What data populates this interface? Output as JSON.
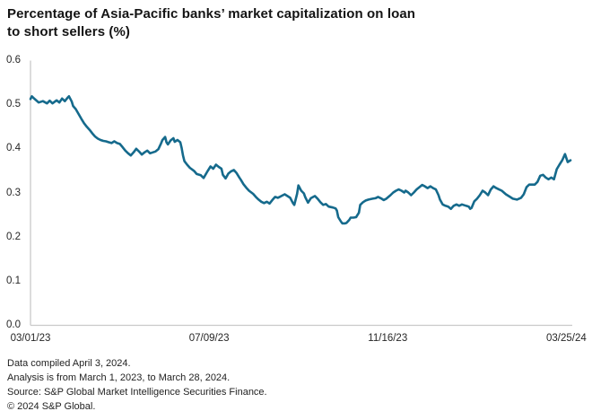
{
  "title": "Percentage of Asia-Pacific banks’ market capitalization on loan\nto short sellers (%)",
  "footer": {
    "lines": [
      "Data compiled April 3, 2024.",
      "Analysis is from March 1, 2023, to March 28, 2024.",
      "Source: S&P Global Market Intelligence Securities Finance.",
      "© 2024 S&P Global."
    ]
  },
  "chart_data": {
    "type": "line",
    "title": "Percentage of Asia-Pacific banks’ market capitalization on loan to short sellers (%)",
    "xlabel": "",
    "ylabel": "",
    "x_unit": "days since 2023-03-01",
    "x_range": [
      0,
      393
    ],
    "ylim": [
      0,
      0.6
    ],
    "grid": false,
    "legend": "none",
    "line_color": "#156a8c",
    "axis_color": "#c9c9c9",
    "yticks": [
      {
        "label": "0.6",
        "value": 0.6
      },
      {
        "label": "0.5",
        "value": 0.5
      },
      {
        "label": "0.4",
        "value": 0.4
      },
      {
        "label": "0.3",
        "value": 0.3
      },
      {
        "label": "0.2",
        "value": 0.2
      },
      {
        "label": "0.1",
        "value": 0.1
      },
      {
        "label": "0.0",
        "value": 0.0
      }
    ],
    "xticks": [
      {
        "label": "03/01/23",
        "day": 0
      },
      {
        "label": "07/09/23",
        "day": 130
      },
      {
        "label": "11/16/23",
        "day": 260
      },
      {
        "label": "03/25/24",
        "day": 390
      }
    ],
    "points": [
      [
        0,
        0.513
      ],
      [
        1,
        0.519
      ],
      [
        3,
        0.513
      ],
      [
        6,
        0.505
      ],
      [
        9,
        0.508
      ],
      [
        12,
        0.503
      ],
      [
        14,
        0.509
      ],
      [
        16,
        0.503
      ],
      [
        19,
        0.51
      ],
      [
        21,
        0.505
      ],
      [
        23,
        0.514
      ],
      [
        25,
        0.508
      ],
      [
        27,
        0.516
      ],
      [
        28,
        0.519
      ],
      [
        30,
        0.507
      ],
      [
        31,
        0.497
      ],
      [
        33,
        0.49
      ],
      [
        35,
        0.479
      ],
      [
        37,
        0.468
      ],
      [
        39,
        0.458
      ],
      [
        41,
        0.45
      ],
      [
        43,
        0.443
      ],
      [
        45,
        0.435
      ],
      [
        47,
        0.428
      ],
      [
        49,
        0.423
      ],
      [
        51,
        0.42
      ],
      [
        53,
        0.418
      ],
      [
        55,
        0.417
      ],
      [
        57,
        0.415
      ],
      [
        59,
        0.413
      ],
      [
        61,
        0.417
      ],
      [
        63,
        0.413
      ],
      [
        65,
        0.411
      ],
      [
        67,
        0.404
      ],
      [
        69,
        0.396
      ],
      [
        71,
        0.39
      ],
      [
        73,
        0.385
      ],
      [
        75,
        0.392
      ],
      [
        77,
        0.4
      ],
      [
        79,
        0.394
      ],
      [
        81,
        0.387
      ],
      [
        83,
        0.392
      ],
      [
        85,
        0.396
      ],
      [
        87,
        0.39
      ],
      [
        89,
        0.392
      ],
      [
        91,
        0.394
      ],
      [
        93,
        0.399
      ],
      [
        95,
        0.412
      ],
      [
        96,
        0.42
      ],
      [
        98,
        0.427
      ],
      [
        99,
        0.415
      ],
      [
        100,
        0.41
      ],
      [
        102,
        0.419
      ],
      [
        104,
        0.424
      ],
      [
        105,
        0.416
      ],
      [
        107,
        0.42
      ],
      [
        109,
        0.415
      ],
      [
        110,
        0.402
      ],
      [
        111,
        0.385
      ],
      [
        112,
        0.372
      ],
      [
        114,
        0.364
      ],
      [
        116,
        0.357
      ],
      [
        119,
        0.35
      ],
      [
        121,
        0.343
      ],
      [
        124,
        0.34
      ],
      [
        126,
        0.334
      ],
      [
        129,
        0.35
      ],
      [
        131,
        0.36
      ],
      [
        133,
        0.355
      ],
      [
        135,
        0.364
      ],
      [
        137,
        0.359
      ],
      [
        139,
        0.355
      ],
      [
        140,
        0.341
      ],
      [
        142,
        0.333
      ],
      [
        144,
        0.344
      ],
      [
        146,
        0.349
      ],
      [
        148,
        0.352
      ],
      [
        150,
        0.345
      ],
      [
        152,
        0.335
      ],
      [
        153,
        0.33
      ],
      [
        155,
        0.32
      ],
      [
        157,
        0.312
      ],
      [
        159,
        0.305
      ],
      [
        162,
        0.298
      ],
      [
        164,
        0.291
      ],
      [
        166,
        0.285
      ],
      [
        168,
        0.28
      ],
      [
        170,
        0.277
      ],
      [
        172,
        0.28
      ],
      [
        174,
        0.276
      ],
      [
        176,
        0.284
      ],
      [
        178,
        0.291
      ],
      [
        180,
        0.289
      ],
      [
        182,
        0.292
      ],
      [
        185,
        0.297
      ],
      [
        187,
        0.293
      ],
      [
        189,
        0.289
      ],
      [
        191,
        0.277
      ],
      [
        192,
        0.273
      ],
      [
        194,
        0.298
      ],
      [
        195,
        0.317
      ],
      [
        197,
        0.305
      ],
      [
        199,
        0.299
      ],
      [
        200,
        0.29
      ],
      [
        202,
        0.278
      ],
      [
        204,
        0.288
      ],
      [
        207,
        0.293
      ],
      [
        209,
        0.287
      ],
      [
        211,
        0.279
      ],
      [
        213,
        0.273
      ],
      [
        215,
        0.275
      ],
      [
        217,
        0.269
      ],
      [
        220,
        0.267
      ],
      [
        222,
        0.265
      ],
      [
        223,
        0.26
      ],
      [
        224,
        0.245
      ],
      [
        226,
        0.235
      ],
      [
        227,
        0.231
      ],
      [
        229,
        0.231
      ],
      [
        230,
        0.232
      ],
      [
        232,
        0.239
      ],
      [
        233,
        0.244
      ],
      [
        235,
        0.244
      ],
      [
        237,
        0.245
      ],
      [
        239,
        0.255
      ],
      [
        240,
        0.273
      ],
      [
        242,
        0.279
      ],
      [
        244,
        0.283
      ],
      [
        246,
        0.285
      ],
      [
        249,
        0.287
      ],
      [
        251,
        0.288
      ],
      [
        253,
        0.291
      ],
      [
        255,
        0.288
      ],
      [
        257,
        0.284
      ],
      [
        259,
        0.287
      ],
      [
        262,
        0.295
      ],
      [
        264,
        0.301
      ],
      [
        266,
        0.305
      ],
      [
        268,
        0.308
      ],
      [
        270,
        0.305
      ],
      [
        272,
        0.301
      ],
      [
        273,
        0.305
      ],
      [
        275,
        0.301
      ],
      [
        277,
        0.295
      ],
      [
        279,
        0.301
      ],
      [
        281,
        0.308
      ],
      [
        283,
        0.313
      ],
      [
        285,
        0.318
      ],
      [
        287,
        0.315
      ],
      [
        289,
        0.311
      ],
      [
        291,
        0.315
      ],
      [
        293,
        0.311
      ],
      [
        295,
        0.308
      ],
      [
        297,
        0.295
      ],
      [
        298,
        0.285
      ],
      [
        300,
        0.274
      ],
      [
        302,
        0.271
      ],
      [
        304,
        0.269
      ],
      [
        306,
        0.264
      ],
      [
        308,
        0.271
      ],
      [
        310,
        0.274
      ],
      [
        312,
        0.271
      ],
      [
        314,
        0.274
      ],
      [
        317,
        0.271
      ],
      [
        319,
        0.269
      ],
      [
        320,
        0.264
      ],
      [
        321,
        0.266
      ],
      [
        323,
        0.281
      ],
      [
        325,
        0.287
      ],
      [
        327,
        0.295
      ],
      [
        329,
        0.305
      ],
      [
        331,
        0.301
      ],
      [
        333,
        0.295
      ],
      [
        335,
        0.308
      ],
      [
        337,
        0.315
      ],
      [
        339,
        0.311
      ],
      [
        341,
        0.308
      ],
      [
        343,
        0.305
      ],
      [
        346,
        0.297
      ],
      [
        349,
        0.291
      ],
      [
        351,
        0.287
      ],
      [
        354,
        0.285
      ],
      [
        357,
        0.289
      ],
      [
        359,
        0.297
      ],
      [
        361,
        0.313
      ],
      [
        363,
        0.319
      ],
      [
        367,
        0.319
      ],
      [
        369,
        0.325
      ],
      [
        371,
        0.339
      ],
      [
        373,
        0.341
      ],
      [
        375,
        0.335
      ],
      [
        377,
        0.331
      ],
      [
        379,
        0.335
      ],
      [
        381,
        0.331
      ],
      [
        383,
        0.354
      ],
      [
        385,
        0.364
      ],
      [
        387,
        0.374
      ],
      [
        389,
        0.388
      ],
      [
        391,
        0.37
      ],
      [
        393,
        0.374
      ]
    ]
  }
}
